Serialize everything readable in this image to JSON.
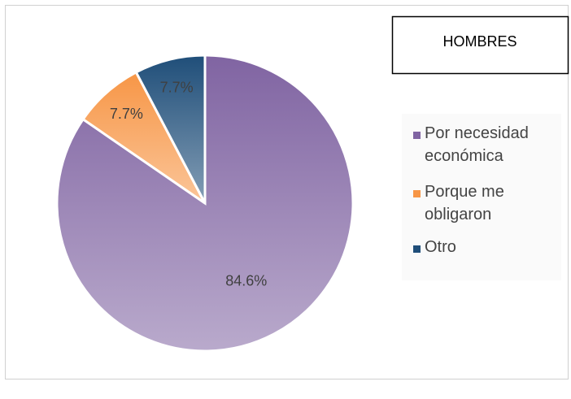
{
  "chart_data": {
    "type": "pie",
    "title": "HOMBRES",
    "categories": [
      "Por necesidad económica",
      "Porque me obligaron",
      "Otro"
    ],
    "values": [
      84.6,
      7.7,
      7.7
    ],
    "value_labels": [
      "84.6%",
      "7.7%",
      "7.7%"
    ],
    "colors": [
      "#8064a2",
      "#f79646",
      "#1f4e79"
    ]
  }
}
